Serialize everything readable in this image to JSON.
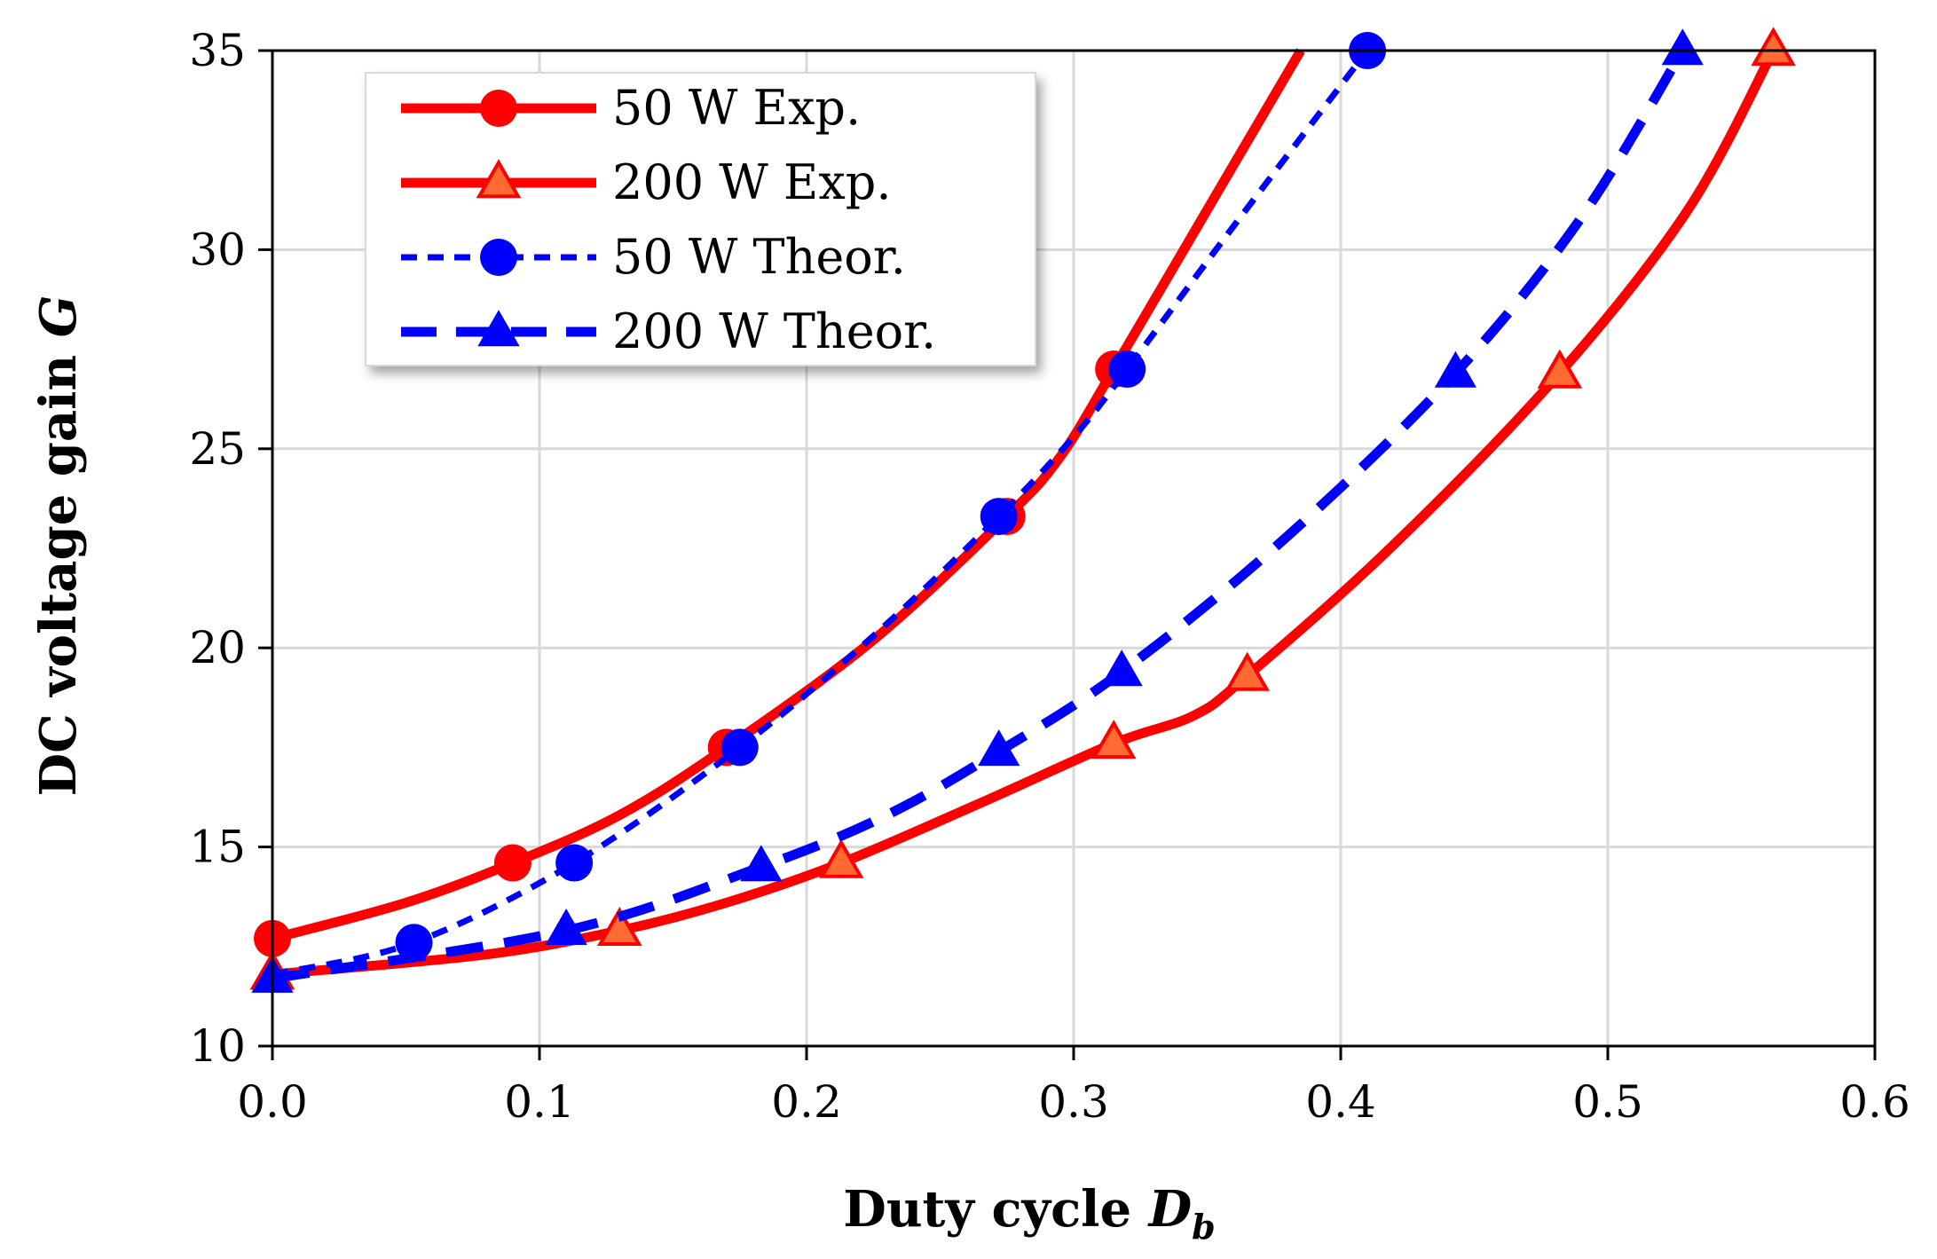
{
  "chart_data": {
    "type": "line",
    "xlabel": {
      "main": "Duty cycle ",
      "symbol": "D",
      "subscript": "b"
    },
    "ylabel": {
      "main": "DC voltage gain ",
      "symbol": "G"
    },
    "xlim": [
      0,
      0.6
    ],
    "ylim": [
      10,
      35
    ],
    "xticks": [
      "0.0",
      "0.1",
      "0.2",
      "0.3",
      "0.4",
      "0.5",
      "0.6"
    ],
    "yticks": [
      "10",
      "15",
      "20",
      "25",
      "30",
      "35"
    ],
    "grid": true,
    "legend_position": "top-left",
    "series": [
      {
        "name": "50 W Exp.",
        "color": "#ff0000",
        "marker": "circle",
        "line_style": "solid",
        "markers": [
          [
            0.0,
            12.7
          ],
          [
            0.09,
            14.6
          ],
          [
            0.17,
            17.5
          ],
          [
            0.275,
            23.3
          ],
          [
            0.315,
            27.0
          ]
        ],
        "curve": [
          [
            0.0,
            12.7
          ],
          [
            0.05,
            13.6
          ],
          [
            0.09,
            14.6
          ],
          [
            0.13,
            15.8
          ],
          [
            0.17,
            17.5
          ],
          [
            0.225,
            20.2
          ],
          [
            0.275,
            23.3
          ],
          [
            0.295,
            24.8
          ],
          [
            0.315,
            27.0
          ],
          [
            0.35,
            31.0
          ],
          [
            0.385,
            35.0
          ]
        ]
      },
      {
        "name": "200 W Exp.",
        "color": "#ff0000",
        "marker_fill": "#ff6a33",
        "marker": "triangle",
        "line_style": "solid",
        "markers": [
          [
            0.0,
            11.8
          ],
          [
            0.13,
            12.9
          ],
          [
            0.213,
            14.6
          ],
          [
            0.315,
            17.6
          ],
          [
            0.365,
            19.3
          ],
          [
            0.482,
            26.9
          ],
          [
            0.562,
            35.0
          ]
        ],
        "curve": [
          [
            0.0,
            11.8
          ],
          [
            0.08,
            12.3
          ],
          [
            0.13,
            12.9
          ],
          [
            0.17,
            13.6
          ],
          [
            0.213,
            14.6
          ],
          [
            0.265,
            16.1
          ],
          [
            0.315,
            17.6
          ],
          [
            0.345,
            18.3
          ],
          [
            0.365,
            19.3
          ],
          [
            0.42,
            22.6
          ],
          [
            0.482,
            26.9
          ],
          [
            0.53,
            31.0
          ],
          [
            0.562,
            35.0
          ]
        ]
      },
      {
        "name": "50 W Theor.",
        "color": "#0000ff",
        "marker": "circle",
        "line_style": "dotted",
        "markers": [
          [
            0.053,
            12.6
          ],
          [
            0.113,
            14.6
          ],
          [
            0.175,
            17.5
          ],
          [
            0.272,
            23.3
          ],
          [
            0.32,
            27.0
          ],
          [
            0.41,
            35.0
          ]
        ],
        "curve": [
          [
            0.0,
            11.8
          ],
          [
            0.053,
            12.6
          ],
          [
            0.113,
            14.6
          ],
          [
            0.175,
            17.5
          ],
          [
            0.225,
            20.3
          ],
          [
            0.272,
            23.3
          ],
          [
            0.3,
            25.3
          ],
          [
            0.32,
            27.0
          ],
          [
            0.36,
            30.6
          ],
          [
            0.41,
            35.0
          ]
        ]
      },
      {
        "name": "200 W Theor.",
        "color": "#0000ff",
        "marker": "triangle",
        "line_style": "dashed",
        "markers": [
          [
            0.0,
            11.7
          ],
          [
            0.11,
            12.9
          ],
          [
            0.183,
            14.5
          ],
          [
            0.272,
            17.4
          ],
          [
            0.318,
            19.4
          ],
          [
            0.443,
            26.9
          ],
          [
            0.528,
            35.0
          ]
        ],
        "curve": [
          [
            0.0,
            11.7
          ],
          [
            0.11,
            12.9
          ],
          [
            0.183,
            14.5
          ],
          [
            0.23,
            15.8
          ],
          [
            0.272,
            17.4
          ],
          [
            0.318,
            19.4
          ],
          [
            0.38,
            22.8
          ],
          [
            0.443,
            26.9
          ],
          [
            0.49,
            30.8
          ],
          [
            0.528,
            35.0
          ]
        ]
      }
    ]
  }
}
